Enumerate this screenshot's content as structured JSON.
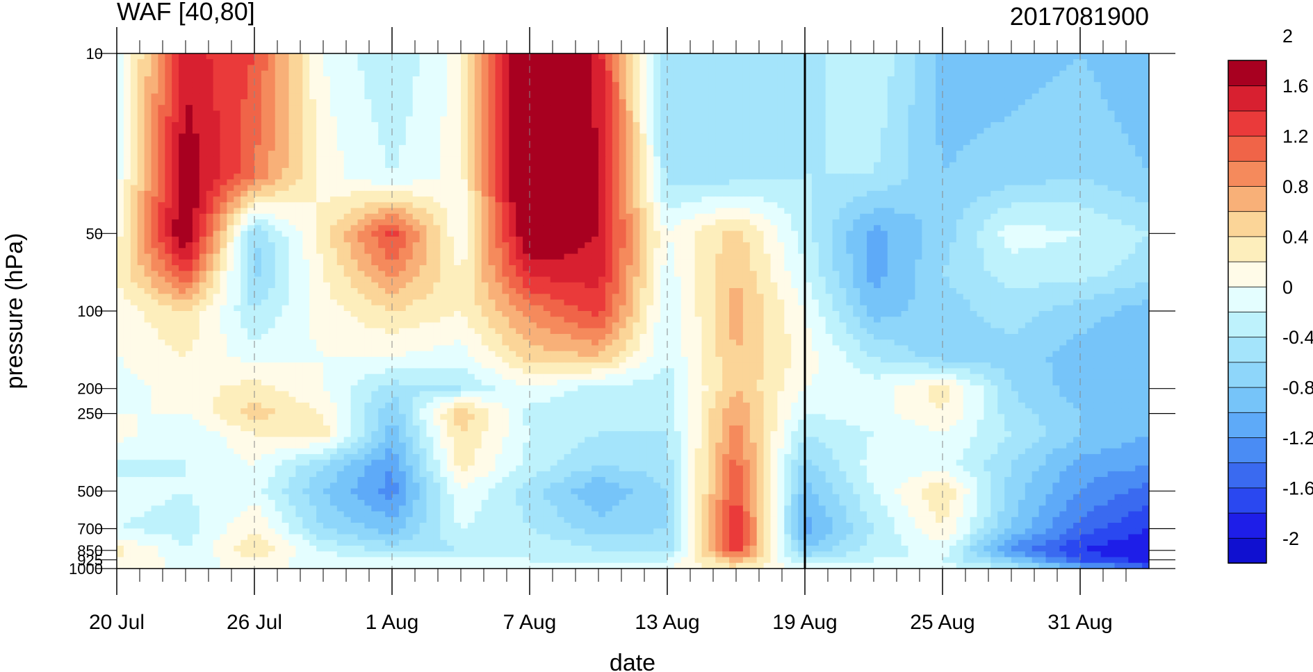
{
  "chart_data": {
    "type": "heatmap",
    "title": "WAF [40,80]",
    "subtitle": "2017081900",
    "xlabel": "date",
    "ylabel": "pressure (hPa)",
    "x_tick_labels": [
      "20 Jul",
      "26 Jul",
      "1 Aug",
      "7 Aug",
      "13 Aug",
      "19 Aug",
      "25 Aug",
      "31 Aug"
    ],
    "x_range": [
      "20 Jul",
      "3 Sep"
    ],
    "y_scale": "log",
    "y_reversed": true,
    "y_range": [
      1000,
      10
    ],
    "y_ticks": [
      10,
      50,
      100,
      200,
      250,
      500,
      700,
      850,
      925,
      1000
    ],
    "y_tick_labels": [
      "10",
      "50",
      "100",
      "200",
      "250",
      "500",
      "700",
      "850",
      "925",
      "1000"
    ],
    "vertical_line_at": "19 Aug",
    "grid": "dashed vertical lines at date ticks",
    "colorbar": {
      "position": "right",
      "levels": [
        -2.2,
        -2,
        -1.8,
        -1.6,
        -1.4,
        -1.2,
        -1,
        -0.8,
        -0.6,
        -0.4,
        -0.2,
        0,
        0.2,
        0.4,
        0.6,
        0.8,
        1,
        1.2,
        1.4,
        1.6,
        1.8,
        2,
        2.2
      ],
      "tick_labels": [
        "2",
        "1.6",
        "1.2",
        "0.8",
        "0.4",
        "0",
        "-0.4",
        "-0.8",
        "-1.2",
        "-1.6",
        "-2"
      ],
      "colors": [
        "#1010d0",
        "#1e1ee8",
        "#2a48f0",
        "#3a6af0",
        "#4a8cf4",
        "#5eaaf8",
        "#76c4f9",
        "#8ed6fa",
        "#a4e4fb",
        "#bef2fc",
        "#e4feff",
        "#fffbe8",
        "#fdeebc",
        "#fbd598",
        "#f8b078",
        "#f58a5c",
        "#f06448",
        "#ea3a3a",
        "#d82030",
        "#a80020"
      ]
    },
    "field": {
      "x_days": [
        0,
        3,
        6,
        9,
        12,
        15,
        18,
        21,
        24,
        27,
        30,
        33,
        36,
        39,
        42,
        45
      ],
      "levels_hpa": [
        10,
        30,
        50,
        70,
        100,
        150,
        200,
        250,
        300,
        400,
        500,
        700,
        850,
        925,
        1000
      ],
      "values": [
        [
          -0.2,
          1.5,
          1.2,
          0.0,
          -0.4,
          0.1,
          2.4,
          1.5,
          -0.6,
          -0.6,
          -0.5,
          -0.2,
          -0.9,
          -0.9,
          -0.8,
          -1.0
        ],
        [
          -0.1,
          1.8,
          1.0,
          0.1,
          -0.2,
          0.1,
          2.3,
          1.6,
          -0.5,
          -0.5,
          -0.4,
          -0.4,
          -0.8,
          -0.7,
          -0.6,
          -0.8
        ],
        [
          0.1,
          1.9,
          -0.6,
          0.3,
          1.3,
          0.0,
          1.9,
          1.6,
          0.0,
          0.5,
          -0.3,
          -1.1,
          -0.7,
          -0.1,
          -0.2,
          -0.4
        ],
        [
          0.2,
          1.3,
          -0.7,
          0.2,
          0.9,
          0.2,
          1.5,
          1.5,
          -0.1,
          0.6,
          -0.2,
          -1.1,
          -0.6,
          -0.3,
          -0.3,
          -0.5
        ],
        [
          0.1,
          0.4,
          -0.4,
          0.1,
          0.4,
          0.2,
          0.9,
          1.3,
          -0.2,
          0.7,
          0.0,
          -0.9,
          -0.7,
          -0.5,
          -0.7,
          -0.9
        ],
        [
          0.0,
          0.2,
          -0.1,
          0.0,
          0.0,
          -0.1,
          0.5,
          0.6,
          -0.2,
          0.6,
          0.1,
          -0.4,
          -0.7,
          -0.7,
          -0.9,
          -1.0
        ],
        [
          -0.1,
          0.1,
          0.3,
          0.0,
          -0.5,
          -0.4,
          0.0,
          -0.3,
          -0.3,
          0.6,
          0.0,
          -0.1,
          0.3,
          -0.6,
          -0.9,
          -1.0
        ],
        [
          0.0,
          0.0,
          0.5,
          0.2,
          -0.8,
          0.6,
          -0.3,
          -0.4,
          -0.3,
          0.8,
          -0.2,
          -0.1,
          0.2,
          -0.5,
          -0.8,
          -0.9
        ],
        [
          0.1,
          -0.2,
          0.2,
          0.3,
          -0.9,
          0.4,
          -0.2,
          -0.4,
          -0.4,
          0.9,
          -0.4,
          -0.2,
          0.0,
          -0.4,
          -0.8,
          -1.0
        ],
        [
          -0.3,
          -0.2,
          0.0,
          -0.6,
          -1.2,
          0.3,
          -0.3,
          -0.6,
          -0.5,
          1.1,
          -0.7,
          -0.1,
          -0.1,
          -0.6,
          -1.1,
          -1.2
        ],
        [
          -0.1,
          -0.2,
          -0.1,
          -0.8,
          -1.3,
          0.0,
          -0.5,
          -1.0,
          -0.6,
          1.2,
          -0.9,
          -0.2,
          0.4,
          -0.7,
          -1.2,
          -1.5
        ],
        [
          -0.2,
          -0.3,
          0.2,
          -0.6,
          -0.9,
          -0.2,
          -0.4,
          -0.7,
          -0.6,
          1.5,
          -1.1,
          -0.4,
          0.2,
          -0.8,
          -1.5,
          -1.8
        ],
        [
          0.3,
          -0.2,
          0.4,
          -0.2,
          -0.5,
          -0.4,
          -0.2,
          -0.4,
          -0.5,
          1.3,
          -0.8,
          -0.3,
          -0.1,
          -1.3,
          -1.8,
          -2.0
        ],
        [
          0.2,
          -0.1,
          0.1,
          -0.1,
          -0.2,
          -0.2,
          -0.2,
          -0.3,
          -0.2,
          0.7,
          -0.4,
          -0.2,
          -0.2,
          -0.8,
          -1.6,
          -1.9
        ],
        [
          0.0,
          0.0,
          0.0,
          0.0,
          -0.1,
          -0.1,
          -0.1,
          -0.1,
          0.0,
          0.3,
          -0.1,
          -0.1,
          -0.1,
          -0.4,
          -1.0,
          -1.5
        ]
      ]
    }
  }
}
